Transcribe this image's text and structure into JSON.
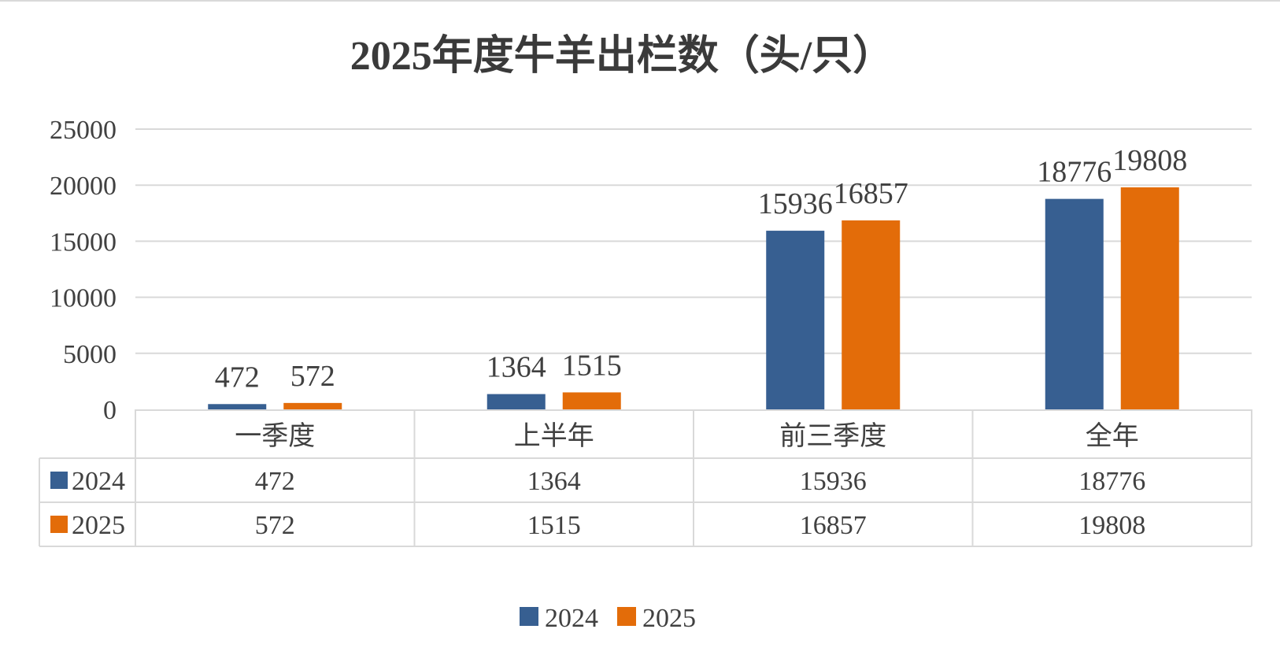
{
  "chart_data": {
    "type": "bar",
    "title": "2025年度牛羊出栏数（头/只）",
    "xlabel": "",
    "ylabel": "",
    "categories": [
      "一季度",
      "上半年",
      "前三季度",
      "全年"
    ],
    "series": [
      {
        "name": "2024",
        "values": [
          472,
          1364,
          15936,
          18776
        ],
        "color": "#375f91"
      },
      {
        "name": "2025",
        "values": [
          572,
          1515,
          16857,
          19808
        ],
        "color": "#e36c09"
      }
    ],
    "ylim": [
      0,
      25000
    ],
    "yticks": [
      "0",
      "5000",
      "10000",
      "15000",
      "20000",
      "25000"
    ],
    "data_labels": {
      "2024": [
        "472",
        "1364",
        "15936",
        "18776"
      ],
      "2025": [
        "572",
        "1515",
        "16857",
        "19808"
      ]
    },
    "grid": true,
    "legend": "bottom-center",
    "data_table": true
  }
}
